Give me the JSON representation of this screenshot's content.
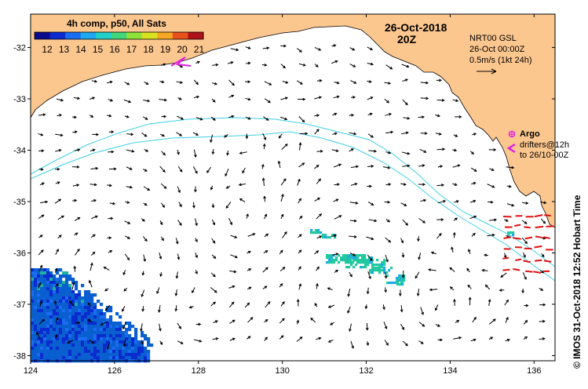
{
  "colorbar": {
    "title": "4h comp, p50, All Sats",
    "ticks": [
      "12",
      "13",
      "14",
      "15",
      "16",
      "17",
      "18",
      "19",
      "20",
      "21"
    ],
    "colors": [
      "#0a0a8c",
      "#0a2ccf",
      "#1a6cf0",
      "#1fa8f0",
      "#22d0c8",
      "#3fd77a",
      "#8fe23a",
      "#d9e21f",
      "#f5a623",
      "#e8501c",
      "#b0121a"
    ]
  },
  "header": {
    "date": "26-Oct-2018",
    "time": "20Z"
  },
  "current_legend": {
    "model": "NRT00 GSL",
    "time": "26-Oct 00:00Z",
    "scale": "0.5m/s (1kt 24h)"
  },
  "argo_legend": {
    "label": "Argo",
    "drifters_line1": "drifters@12h",
    "drifters_line2": "to 26/10-00Z"
  },
  "axes": {
    "x_ticks": [
      "124",
      "126",
      "128",
      "130",
      "132",
      "134",
      "136"
    ],
    "x_values": [
      124,
      126,
      128,
      130,
      132,
      134,
      136
    ],
    "y_ticks": [
      "-32",
      "-33",
      "-34",
      "-35",
      "-36",
      "-37",
      "-38"
    ],
    "y_values": [
      -32,
      -33,
      -34,
      -35,
      -36,
      -37,
      -38
    ],
    "lon_range": [
      124,
      136.5
    ],
    "lat_range": [
      -38.1,
      -31.35
    ]
  },
  "side_label": "© IMOS 31-Oct-2018 12:52 Hobart Time",
  "colors": {
    "land": "#fcc78f",
    "isobath": "#3fd0e6",
    "drifter": "#e01010",
    "argo": "#e020e0",
    "cold_sst": "#0a5fd0",
    "warm_sst": "#22c8a0"
  }
}
